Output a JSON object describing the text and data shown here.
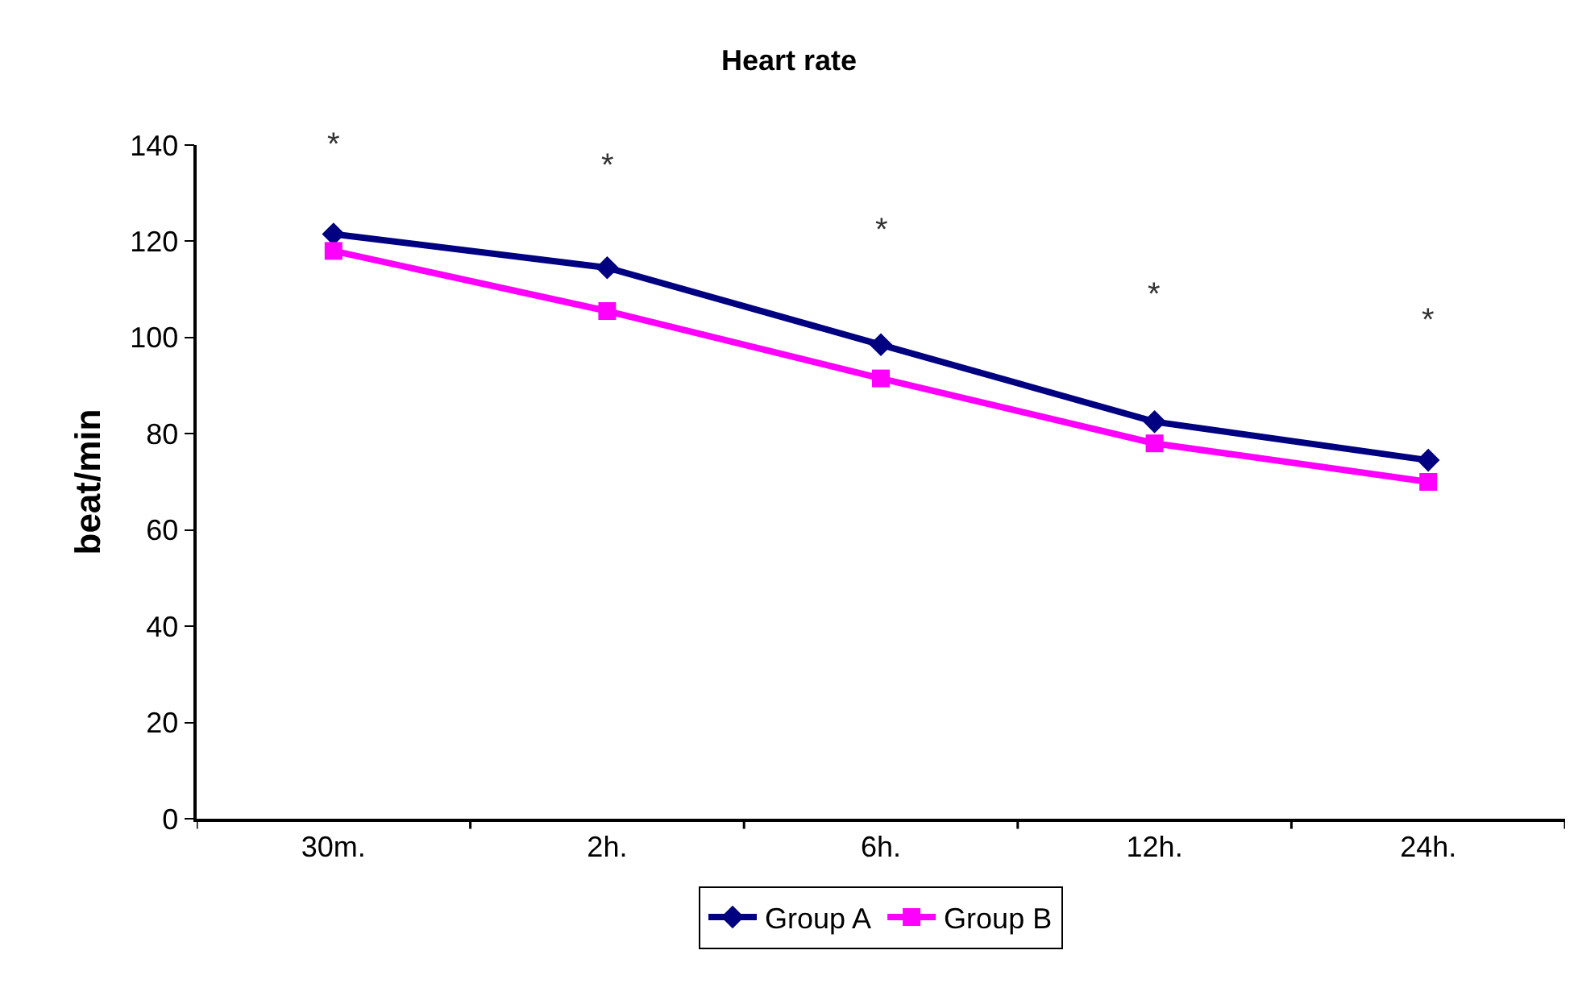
{
  "chart_data": {
    "type": "line",
    "title": "Heart rate",
    "ylabel": "beat/min",
    "categories": [
      "30m.",
      "2h.",
      "6h.",
      "12h.",
      "24h."
    ],
    "series": [
      {
        "name": "Group A",
        "color": "#000080",
        "marker": "diamond",
        "values": [
          121.5,
          114.5,
          98.5,
          82.5,
          74.5
        ]
      },
      {
        "name": "Group B",
        "color": "#ff00ff",
        "marker": "square",
        "values": [
          118,
          105.5,
          91.5,
          78,
          70
        ]
      }
    ],
    "ylim": [
      0,
      140
    ],
    "yticks": [
      0,
      20,
      40,
      60,
      80,
      100,
      120,
      140
    ],
    "grid": false,
    "legend": "bottom",
    "line_style": "solid",
    "annotations": [
      "*",
      "*",
      "*",
      "*",
      "*"
    ]
  }
}
